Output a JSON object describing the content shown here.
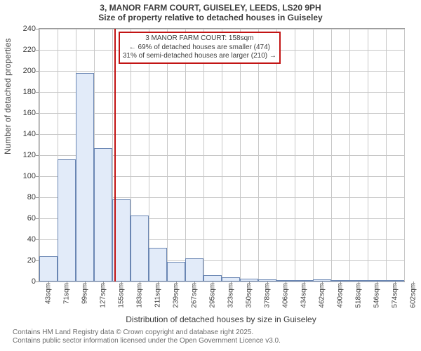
{
  "title": {
    "line1": "3, MANOR FARM COURT, GUISELEY, LEEDS, LS20 9PH",
    "line2": "Size of property relative to detached houses in Guiseley"
  },
  "axes": {
    "ylabel": "Number of detached properties",
    "xlabel": "Distribution of detached houses by size in Guiseley",
    "ymin": 0,
    "ymax": 240,
    "ytick_step": 20,
    "yticks": [
      0,
      20,
      40,
      60,
      80,
      100,
      120,
      140,
      160,
      180,
      200,
      220,
      240
    ],
    "xticks": [
      "43sqm",
      "71sqm",
      "99sqm",
      "127sqm",
      "155sqm",
      "183sqm",
      "211sqm",
      "239sqm",
      "267sqm",
      "295sqm",
      "323sqm",
      "350sqm",
      "378sqm",
      "406sqm",
      "434sqm",
      "462sqm",
      "490sqm",
      "518sqm",
      "546sqm",
      "574sqm",
      "602sqm"
    ]
  },
  "chart": {
    "type": "histogram",
    "bar_color": "#e2ebf9",
    "bar_border": "#6a86b3",
    "background": "#ffffff",
    "grid_color": "#c7c7c7",
    "axis_color": "#9a9a9a",
    "values": [
      24,
      116,
      198,
      127,
      78,
      63,
      32,
      19,
      22,
      6,
      4,
      3,
      2,
      1,
      1,
      2,
      1,
      0,
      1,
      0
    ],
    "label_fontsize": 11,
    "title_fontsize": 12
  },
  "reference": {
    "color": "#c21414",
    "position_index": 4,
    "legend": {
      "line1": "3 MANOR FARM COURT: 158sqm",
      "line2": "← 69% of detached houses are smaller (474)",
      "line3": "31% of semi-detached houses are larger (210) →"
    }
  },
  "footer": {
    "line1": "Contains HM Land Registry data © Crown copyright and database right 2025.",
    "line2": "Contains public sector information licensed under the Open Government Licence v3.0."
  }
}
